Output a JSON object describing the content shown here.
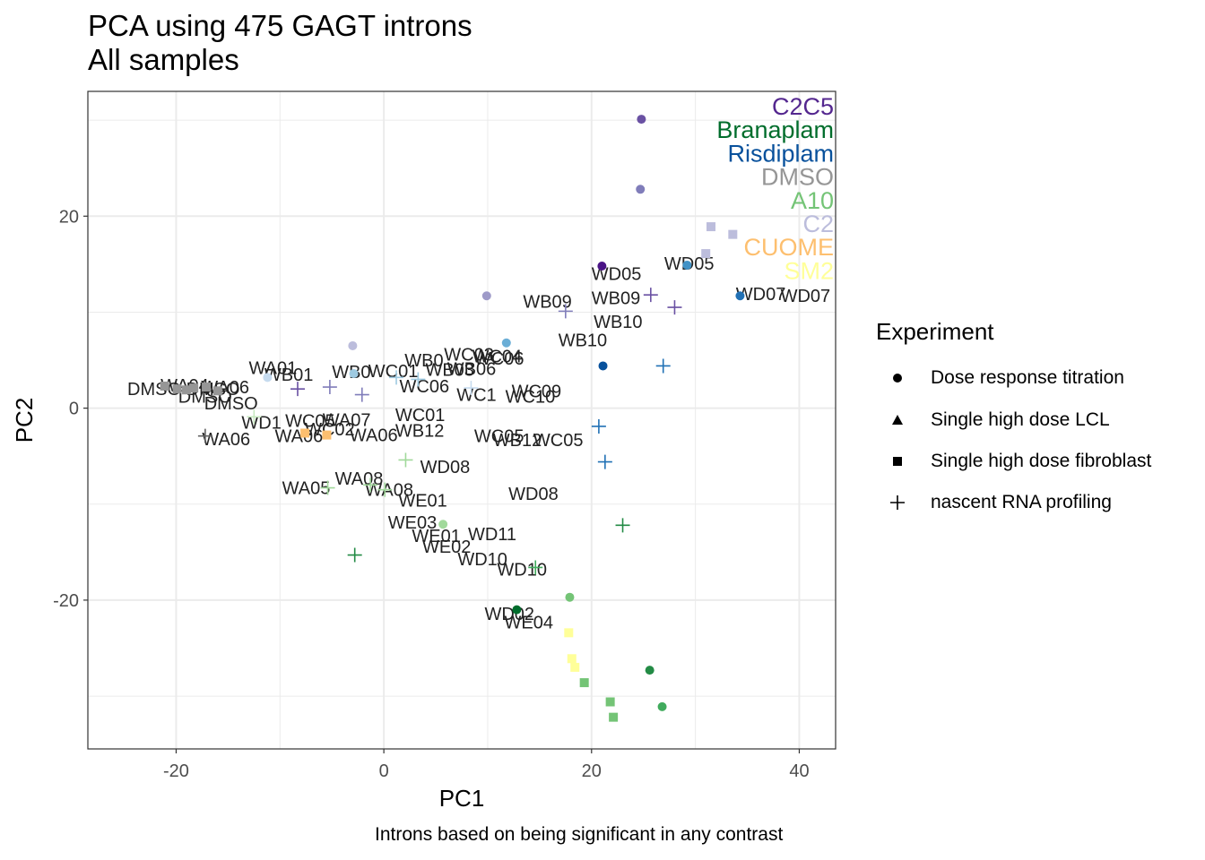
{
  "title": "PCA using 475 GAGT introns",
  "subtitle": "All samples",
  "caption": "Introns based on being significant in any contrast",
  "chart_data": {
    "type": "scatter",
    "xlabel": "PC1",
    "ylabel": "PC2",
    "xlim": [
      -28.5,
      43.5
    ],
    "ylim": [
      -35.5,
      33.0
    ],
    "xticks": [
      -20,
      0,
      20,
      40
    ],
    "yticks": [
      -20,
      0,
      20
    ],
    "grid": true,
    "legend": {
      "title": "Experiment",
      "position": "right",
      "items": [
        {
          "label": "Dose response titration",
          "shape": "circle"
        },
        {
          "label": "Single high dose LCL",
          "shape": "triangle"
        },
        {
          "label": "Single high dose fibroblast",
          "shape": "square"
        },
        {
          "label": "nascent RNA profiling",
          "shape": "plus"
        }
      ]
    },
    "treatments": [
      {
        "name": "C2C5",
        "color": "#54278f"
      },
      {
        "name": "Branaplam",
        "color": "#006d2c"
      },
      {
        "name": "Risdiplam",
        "color": "#08519c"
      },
      {
        "name": "DMSO",
        "color": "#969696"
      },
      {
        "name": "A10",
        "color": "#74c476"
      },
      {
        "name": "C2",
        "color": "#bcbddc"
      },
      {
        "name": "CUOME",
        "color": "#fdbf6f"
      },
      {
        "name": "SM2",
        "color": "#ffff99"
      }
    ],
    "points": [
      {
        "x": 24.8,
        "y": 30.1,
        "shape": "circle",
        "color": "#6a51a3"
      },
      {
        "x": 24.7,
        "y": 22.8,
        "shape": "circle",
        "color": "#807dba"
      },
      {
        "x": 21.0,
        "y": 14.8,
        "shape": "circle",
        "color": "#4a1486"
      },
      {
        "x": 29.2,
        "y": 14.9,
        "shape": "circle",
        "color": "#4292c6"
      },
      {
        "x": 34.3,
        "y": 11.7,
        "shape": "circle",
        "color": "#2171b5"
      },
      {
        "x": 9.9,
        "y": 11.7,
        "shape": "circle",
        "color": "#9e9ac8"
      },
      {
        "x": 11.8,
        "y": 6.8,
        "shape": "circle",
        "color": "#6baed6"
      },
      {
        "x": -3.0,
        "y": 6.5,
        "shape": "circle",
        "color": "#bcbddc"
      },
      {
        "x": 21.1,
        "y": 4.4,
        "shape": "circle",
        "color": "#08519c"
      },
      {
        "x": -2.9,
        "y": 3.6,
        "shape": "circle",
        "color": "#9ecae1"
      },
      {
        "x": -11.2,
        "y": 3.2,
        "shape": "circle",
        "color": "#c6dbef"
      },
      {
        "x": 17.9,
        "y": -19.7,
        "shape": "circle",
        "color": "#74c476"
      },
      {
        "x": 12.8,
        "y": -21.0,
        "shape": "circle",
        "color": "#006d2c"
      },
      {
        "x": 25.6,
        "y": -27.3,
        "shape": "circle",
        "color": "#238b45"
      },
      {
        "x": 26.8,
        "y": -31.1,
        "shape": "circle",
        "color": "#41ab5d"
      },
      {
        "x": 5.7,
        "y": -12.1,
        "shape": "circle",
        "color": "#a1d99b"
      },
      {
        "x": 31.5,
        "y": 18.9,
        "shape": "square",
        "color": "#bcbddc"
      },
      {
        "x": 33.6,
        "y": 18.1,
        "shape": "square",
        "color": "#bcbddc"
      },
      {
        "x": 31.0,
        "y": 16.1,
        "shape": "square",
        "color": "#bcbddc"
      },
      {
        "x": 17.8,
        "y": -23.4,
        "shape": "square",
        "color": "#ffff99"
      },
      {
        "x": 18.1,
        "y": -26.1,
        "shape": "square",
        "color": "#ffff99"
      },
      {
        "x": 18.4,
        "y": -27.0,
        "shape": "square",
        "color": "#ffff99"
      },
      {
        "x": 19.3,
        "y": -28.6,
        "shape": "square",
        "color": "#74c476"
      },
      {
        "x": 21.8,
        "y": -30.6,
        "shape": "square",
        "color": "#74c476"
      },
      {
        "x": 22.1,
        "y": -32.2,
        "shape": "square",
        "color": "#74c476"
      },
      {
        "x": -7.6,
        "y": -2.6,
        "shape": "square",
        "color": "#fdbf6f"
      },
      {
        "x": -5.5,
        "y": -2.8,
        "shape": "square",
        "color": "#fdbf6f"
      },
      {
        "x": -21.1,
        "y": 2.3,
        "shape": "square",
        "color": "#969696"
      },
      {
        "x": -19.9,
        "y": 2.0,
        "shape": "square",
        "color": "#969696"
      },
      {
        "x": -19.0,
        "y": 1.9,
        "shape": "square",
        "color": "#969696"
      },
      {
        "x": -18.3,
        "y": 2.1,
        "shape": "square",
        "color": "#969696"
      },
      {
        "x": -17.1,
        "y": 2.2,
        "shape": "square",
        "color": "#969696"
      },
      {
        "x": -16.0,
        "y": 1.8,
        "shape": "square",
        "color": "#969696"
      },
      {
        "x": 25.7,
        "y": 11.8,
        "shape": "plus",
        "color": "#6a51a3"
      },
      {
        "x": 28.0,
        "y": 10.5,
        "shape": "plus",
        "color": "#6a51a3"
      },
      {
        "x": 17.5,
        "y": 10.1,
        "shape": "plus",
        "color": "#807dba"
      },
      {
        "x": 26.9,
        "y": 4.4,
        "shape": "plus",
        "color": "#2171b5"
      },
      {
        "x": 20.7,
        "y": -1.9,
        "shape": "plus",
        "color": "#2171b5"
      },
      {
        "x": 21.3,
        "y": -5.6,
        "shape": "plus",
        "color": "#2171b5"
      },
      {
        "x": 23.0,
        "y": -12.2,
        "shape": "plus",
        "color": "#238b45"
      },
      {
        "x": 14.6,
        "y": -16.6,
        "shape": "plus",
        "color": "#41ab5d"
      },
      {
        "x": -2.8,
        "y": -15.3,
        "shape": "plus",
        "color": "#238b45"
      },
      {
        "x": 2.1,
        "y": -5.4,
        "shape": "plus",
        "color": "#a1d99b"
      },
      {
        "x": -5.4,
        "y": -8.3,
        "shape": "plus",
        "color": "#a1d99b"
      },
      {
        "x": -1.3,
        "y": -8.0,
        "shape": "plus",
        "color": "#a1d99b"
      },
      {
        "x": 0.1,
        "y": -8.5,
        "shape": "plus",
        "color": "#a1d99b"
      },
      {
        "x": 8.4,
        "y": 2.1,
        "shape": "plus",
        "color": "#c6dbef"
      },
      {
        "x": -17.2,
        "y": -2.9,
        "shape": "plus",
        "color": "#636363"
      },
      {
        "x": -12.5,
        "y": -0.9,
        "shape": "plus",
        "color": "#c7e9c0"
      },
      {
        "x": -5.2,
        "y": 2.2,
        "shape": "plus",
        "color": "#807dba"
      },
      {
        "x": -2.1,
        "y": 1.4,
        "shape": "plus",
        "color": "#807dba"
      },
      {
        "x": 1.2,
        "y": 3.2,
        "shape": "plus",
        "color": "#9ecae1"
      },
      {
        "x": 3.3,
        "y": 3.0,
        "shape": "plus",
        "color": "#9ecae1"
      },
      {
        "x": -8.3,
        "y": 2.0,
        "shape": "plus",
        "color": "#6a51a3"
      }
    ],
    "labels": [
      {
        "text": "WD05",
        "x": 20.0,
        "y": 14.0
      },
      {
        "text": "WD05",
        "x": 27.0,
        "y": 15.1
      },
      {
        "text": "WD07",
        "x": 33.9,
        "y": 11.9
      },
      {
        "text": "WD07",
        "x": 38.2,
        "y": 11.7
      },
      {
        "text": "WB09",
        "x": 13.4,
        "y": 11.1
      },
      {
        "text": "WB09",
        "x": 20.0,
        "y": 11.5
      },
      {
        "text": "WB10",
        "x": 20.2,
        "y": 9.0
      },
      {
        "text": "WB10",
        "x": 16.8,
        "y": 7.1
      },
      {
        "text": "WC03",
        "x": 5.8,
        "y": 5.6
      },
      {
        "text": "WC04",
        "x": 8.5,
        "y": 5.4
      },
      {
        "text": "WC06",
        "x": 8.7,
        "y": 5.2
      },
      {
        "text": "WB06",
        "x": 6.1,
        "y": 4.1
      },
      {
        "text": "WB0",
        "x": 2.0,
        "y": 5.0
      },
      {
        "text": "WB03",
        "x": 4.0,
        "y": 4.0
      },
      {
        "text": "WA01",
        "x": -13.0,
        "y": 4.2
      },
      {
        "text": "WB01",
        "x": -11.5,
        "y": 3.5
      },
      {
        "text": "WB0",
        "x": -5.0,
        "y": 3.8
      },
      {
        "text": "WC01",
        "x": -1.5,
        "y": 3.9
      },
      {
        "text": "WC09",
        "x": 12.3,
        "y": 1.8
      },
      {
        "text": "WC10",
        "x": 11.7,
        "y": 1.2
      },
      {
        "text": "WC1",
        "x": 7.0,
        "y": 1.4
      },
      {
        "text": "WC06",
        "x": 1.5,
        "y": 2.3
      },
      {
        "text": "WA06",
        "x": -17.6,
        "y": 2.2
      },
      {
        "text": "DMSO DMSO",
        "x": -24.7,
        "y": 2.0
      },
      {
        "text": "DMSO",
        "x": -19.8,
        "y": 1.2
      },
      {
        "text": "DMSO",
        "x": -17.3,
        "y": 0.5
      },
      {
        "text": "WA04",
        "x": -21.5,
        "y": 2.4
      },
      {
        "text": "WD1",
        "x": -13.7,
        "y": -1.5
      },
      {
        "text": "WC05",
        "x": -9.5,
        "y": -1.3
      },
      {
        "text": "WA07",
        "x": -5.9,
        "y": -1.2
      },
      {
        "text": "WC02",
        "x": -7.6,
        "y": -2.2
      },
      {
        "text": "WA06",
        "x": -10.5,
        "y": -2.9
      },
      {
        "text": "WC01",
        "x": 1.1,
        "y": -0.7
      },
      {
        "text": "WB12",
        "x": 1.1,
        "y": -2.3
      },
      {
        "text": "WA06",
        "x": -3.3,
        "y": -2.8
      },
      {
        "text": "WA06",
        "x": -17.5,
        "y": -3.2
      },
      {
        "text": "WC05",
        "x": 8.7,
        "y": -2.9
      },
      {
        "text": "WB12",
        "x": 10.5,
        "y": -3.3
      },
      {
        "text": "WC05",
        "x": 14.4,
        "y": -3.3
      },
      {
        "text": "WD08",
        "x": 3.5,
        "y": -6.1
      },
      {
        "text": "WD08",
        "x": 12.0,
        "y": -8.9
      },
      {
        "text": "WA08",
        "x": -4.7,
        "y": -7.3
      },
      {
        "text": "WA05",
        "x": -9.8,
        "y": -8.3
      },
      {
        "text": "WA08",
        "x": -1.8,
        "y": -8.5
      },
      {
        "text": "WE01",
        "x": 1.4,
        "y": -9.6
      },
      {
        "text": "WE03",
        "x": 0.4,
        "y": -11.9
      },
      {
        "text": "WD11",
        "x": 8.1,
        "y": -13.1
      },
      {
        "text": "WE01",
        "x": 2.7,
        "y": -13.3
      },
      {
        "text": "WE02",
        "x": 3.7,
        "y": -14.4
      },
      {
        "text": "WD10",
        "x": 7.1,
        "y": -15.7
      },
      {
        "text": "WD10",
        "x": 10.9,
        "y": -16.8
      },
      {
        "text": "WD02",
        "x": 9.7,
        "y": -21.4
      },
      {
        "text": "WE04",
        "x": 11.6,
        "y": -22.3
      }
    ]
  }
}
